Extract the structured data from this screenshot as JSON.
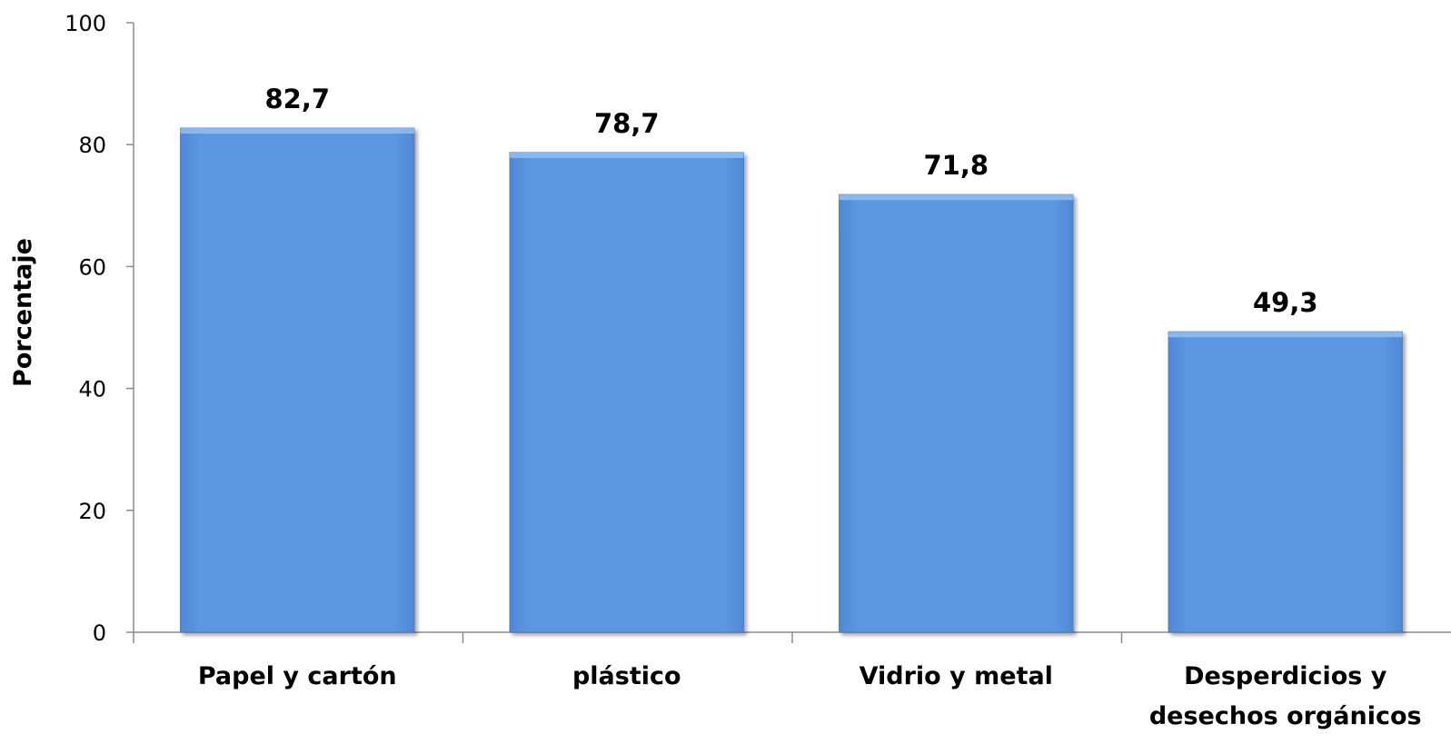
{
  "chart_data": {
    "type": "bar",
    "categories": [
      [
        "Papel y cartón"
      ],
      [
        "plástico"
      ],
      [
        "Vidrio y metal"
      ],
      [
        "Desperdicios y",
        "desechos orgánicos"
      ]
    ],
    "values": [
      82.7,
      78.7,
      71.8,
      49.3
    ],
    "data_labels": [
      "82,7",
      "78,7",
      "71,8",
      "49,3"
    ],
    "title": "",
    "xlabel": "",
    "ylabel": "Porcentaje",
    "ylim": [
      0,
      100
    ],
    "yticks": [
      0,
      20,
      40,
      60,
      80,
      100
    ],
    "grid": false,
    "legend": "none",
    "colors": {
      "bar_fill": "#5b97e1",
      "bar_top": "#8ebcf0",
      "bar_edge": "#4a7ec4",
      "axis": "#8c8c8c"
    }
  }
}
